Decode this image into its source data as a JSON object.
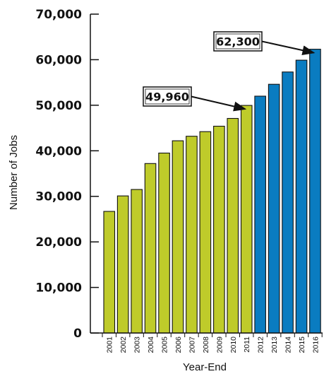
{
  "chart_data": {
    "type": "bar",
    "xlabel": "Year-End",
    "ylabel": "Number of Jobs",
    "ylim": [
      0,
      70000
    ],
    "yticks": [
      0,
      10000,
      20000,
      30000,
      40000,
      50000,
      60000,
      70000
    ],
    "ytick_labels": [
      "0",
      "10,000",
      "20,000",
      "30,000",
      "40,000",
      "50,000",
      "60,000",
      "70,000"
    ],
    "categories": [
      "2001",
      "2002",
      "2003",
      "2004",
      "2005",
      "2006",
      "2007",
      "2008",
      "2009",
      "2010",
      "2011",
      "2012",
      "2013",
      "2014",
      "2015",
      "2016"
    ],
    "values": [
      26700,
      30100,
      31500,
      37200,
      39500,
      42200,
      43200,
      44200,
      45400,
      47100,
      49960,
      52000,
      54600,
      57300,
      59900,
      62300
    ],
    "bar_colors": [
      "#bfcb2a",
      "#bfcb2a",
      "#bfcb2a",
      "#bfcb2a",
      "#bfcb2a",
      "#bfcb2a",
      "#bfcb2a",
      "#bfcb2a",
      "#bfcb2a",
      "#bfcb2a",
      "#bfcb2a",
      "#0a7cc1",
      "#0a7cc1",
      "#0a7cc1",
      "#0a7cc1",
      "#0a7cc1"
    ],
    "annotations": [
      {
        "label": "49,960",
        "category": "2011",
        "value": 49960
      },
      {
        "label": "62,300",
        "category": "2016",
        "value": 62300
      }
    ],
    "grid": false
  }
}
